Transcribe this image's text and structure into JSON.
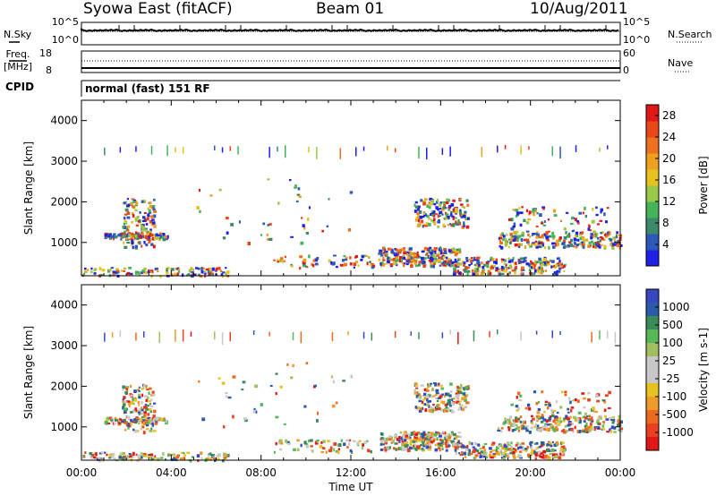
{
  "header": {
    "station": "Syowa East (fitACF)",
    "beam": "Beam 01",
    "date": "10/Aug/2011"
  },
  "panels": {
    "nsky": {
      "label": "N.Sky",
      "ticks": [
        "10^5",
        "10^0"
      ]
    },
    "nsearch": {
      "label": "N.Search",
      "ticks": [
        "10^5",
        "10^0"
      ]
    },
    "freq": {
      "label_line1": "Freq.",
      "label_line2": "[MHz]",
      "ticks": [
        "18",
        "8"
      ]
    },
    "nave": {
      "label": "Nave",
      "ticks": [
        "60",
        "0"
      ]
    },
    "cpid": {
      "label": "CPID",
      "value": "normal (fast) 151 RF"
    }
  },
  "colors": {
    "power": [
      "#1f1fe6",
      "#2e58b8",
      "#3c8a6a",
      "#45b35a",
      "#9ac84a",
      "#e6c21f",
      "#f0a020",
      "#ee7020",
      "#e84818",
      "#e01818"
    ],
    "velocity_pos": [
      "#3846c0",
      "#2a5aa8",
      "#3a8a5a",
      "#58b858",
      "#a0c060"
    ],
    "velocity_mid": "#c8c8c8",
    "velocity_neg": [
      "#e6c21f",
      "#f09a2a",
      "#ec6a20",
      "#e84020",
      "#e01818"
    ]
  },
  "chart_data": [
    {
      "type": "heatmap",
      "name": "Power",
      "xlabel": "",
      "ylabel": "Slant Range [km]",
      "xlim": [
        0,
        24
      ],
      "ylim": [
        180,
        4500
      ],
      "x_ticks": [
        "00:00",
        "04:00",
        "08:00",
        "12:00",
        "16:00",
        "20:00",
        "00:00"
      ],
      "y_ticks": [
        1000,
        2000,
        3000,
        4000
      ],
      "colorbar": {
        "label": "Power [dB]",
        "ticks": [
          4,
          8,
          12,
          16,
          20,
          24,
          28
        ],
        "range": [
          0,
          30
        ]
      }
    },
    {
      "type": "heatmap",
      "name": "Velocity",
      "xlabel": "Time UT",
      "ylabel": "Slant Range [km]",
      "xlim": [
        0,
        24
      ],
      "ylim": [
        180,
        4500
      ],
      "x_ticks": [
        "00:00",
        "04:00",
        "08:00",
        "12:00",
        "16:00",
        "20:00",
        "00:00"
      ],
      "y_ticks": [
        1000,
        2000,
        3000,
        4000
      ],
      "colorbar": {
        "label": "Velocity [m s-1]",
        "ticks": [
          "1000",
          "500",
          "100",
          "25",
          "-25",
          "-100",
          "-500",
          "-1000"
        ]
      }
    }
  ]
}
